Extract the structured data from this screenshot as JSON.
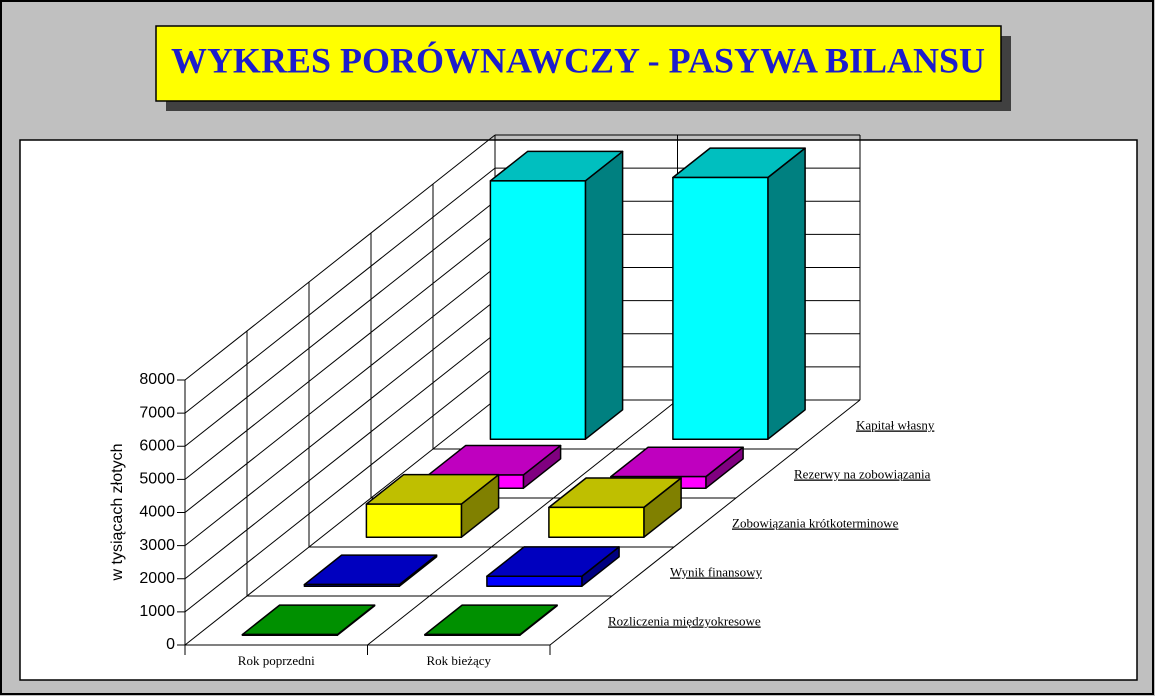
{
  "chart_data": {
    "type": "bar3d",
    "title": "WYKRES PORÓWNAWCZY - PASYWA BILANSU",
    "y_label": "w tysiącach złotych",
    "categories": [
      "Rok poprzedni",
      "Rok bieżący"
    ],
    "series": [
      {
        "name": "Rozliczenia międzyokresowe",
        "color": "#00c000",
        "values": [
          20,
          20
        ]
      },
      {
        "name": "Wynik finansowy",
        "color": "#0000ff",
        "values": [
          50,
          300
        ]
      },
      {
        "name": "Zobowiązania krótkoterminowe",
        "color": "#ffff00",
        "values": [
          1000,
          900
        ]
      },
      {
        "name": "Rezerwy na zobowiązania",
        "color": "#ff00ff",
        "values": [
          400,
          350
        ]
      },
      {
        "name": "Kapitał własny",
        "color": "#00ffff",
        "values": [
          7800,
          7900
        ]
      }
    ],
    "ylim": [
      0,
      8000
    ],
    "yticks": [
      0,
      1000,
      2000,
      3000,
      4000,
      5000,
      6000,
      7000,
      8000
    ],
    "grid": true
  }
}
